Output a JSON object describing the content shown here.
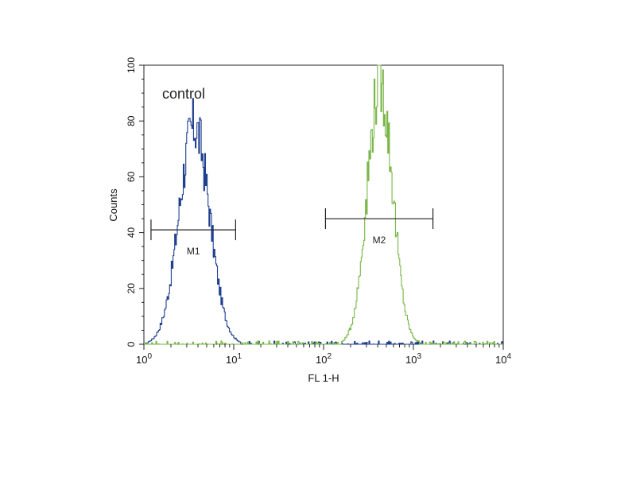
{
  "chart_data": {
    "type": "line",
    "xlabel": "FL 1-H",
    "ylabel": "Counts",
    "x_scale": "log",
    "xlim": [
      1,
      10000
    ],
    "ylim": [
      0,
      100
    ],
    "x_ticks": [
      {
        "base": "10",
        "exp": "0"
      },
      {
        "base": "10",
        "exp": "1"
      },
      {
        "base": "10",
        "exp": "2"
      },
      {
        "base": "10",
        "exp": "3"
      },
      {
        "base": "10",
        "exp": "4"
      }
    ],
    "y_ticks": [
      "0",
      "20",
      "40",
      "60",
      "80",
      "100"
    ],
    "annotation": "control",
    "grid": false,
    "series": [
      {
        "color": "#1f3f8f",
        "shape": "lognormal",
        "center": 3.6,
        "sigma_log10": 0.17,
        "peak": 78
      },
      {
        "color": "#7ab648",
        "shape": "lognormal",
        "center": 420,
        "sigma_log10": 0.14,
        "peak": 94
      }
    ],
    "markers": [
      {
        "label": "M1",
        "x_start": 1.2,
        "x_end": 10.5,
        "y": 41
      },
      {
        "label": "M2",
        "x_start": 105,
        "x_end": 1650,
        "y": 45
      }
    ]
  }
}
